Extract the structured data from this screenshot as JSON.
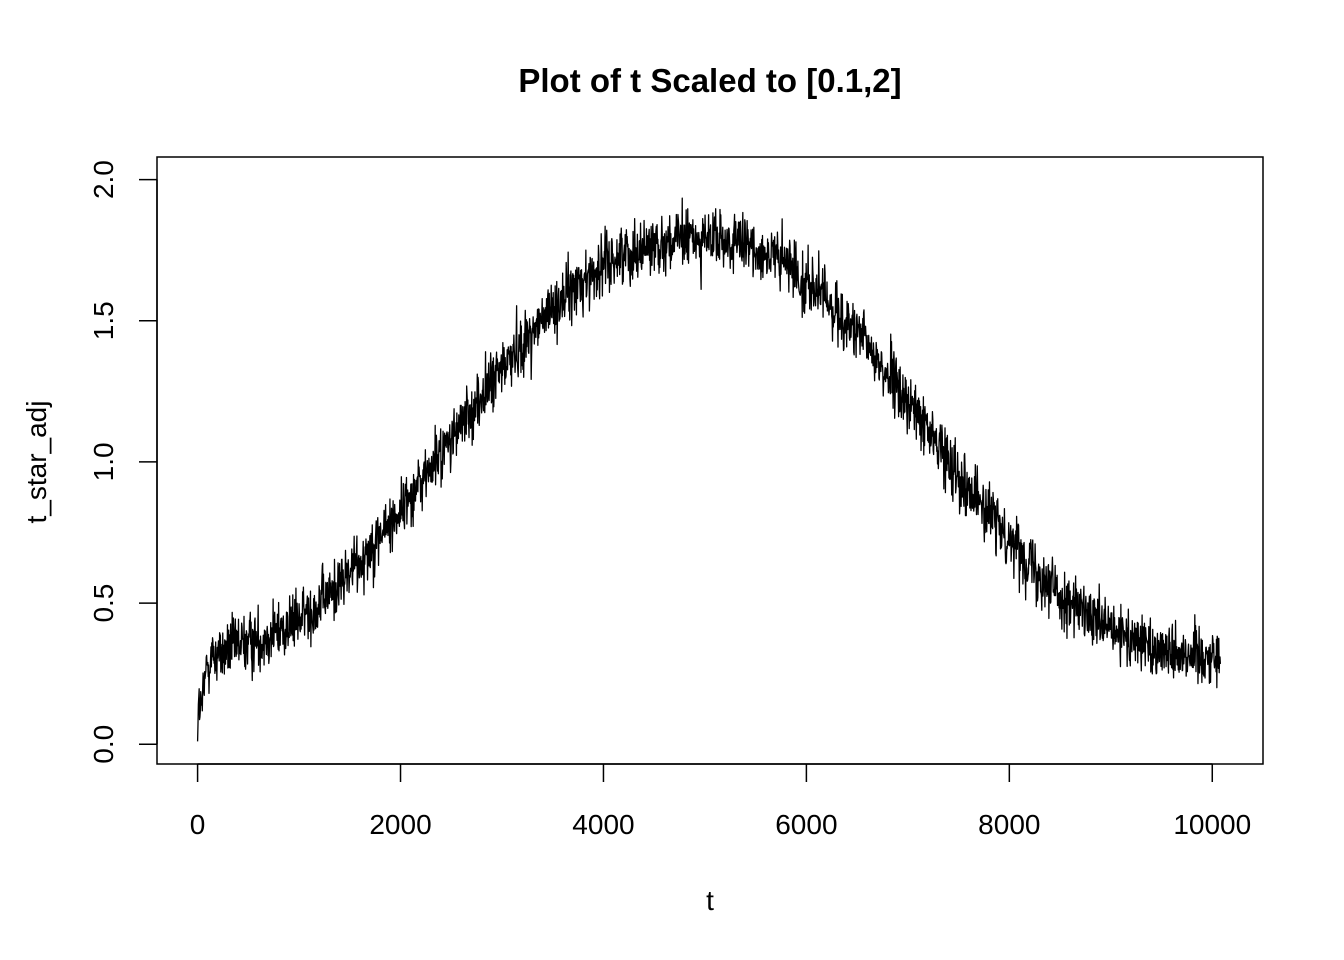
{
  "chart_data": {
    "type": "line",
    "title": "Plot of t Scaled to [0.1,2]",
    "xlabel": "t",
    "ylabel": "t_star_adj",
    "xlim": [
      -400,
      10500
    ],
    "ylim": [
      -0.07,
      2.08
    ],
    "x_ticks": [
      0,
      2000,
      4000,
      6000,
      8000,
      10000
    ],
    "x_tick_labels": [
      "0",
      "2000",
      "4000",
      "6000",
      "8000",
      "10000"
    ],
    "y_ticks": [
      0.0,
      0.5,
      1.0,
      1.5,
      2.0
    ],
    "y_tick_labels": [
      "0.0",
      "0.5",
      "1.0",
      "1.5",
      "2.0"
    ],
    "grid": false,
    "legend": "none",
    "line_color": "#000000",
    "series": [
      {
        "x": [
          0,
          100,
          200,
          300,
          400,
          500,
          600,
          700,
          800,
          900,
          1000,
          1100,
          1200,
          1300,
          1400,
          1500,
          1600,
          1700,
          1800,
          1900,
          2000,
          2100,
          2200,
          2300,
          2400,
          2500,
          2600,
          2700,
          2800,
          2900,
          3000,
          3100,
          3200,
          3300,
          3400,
          3500,
          3600,
          3700,
          3800,
          3900,
          4000,
          4100,
          4200,
          4300,
          4400,
          4500,
          4600,
          4700,
          4800,
          4900,
          5000,
          5100,
          5200,
          5300,
          5400,
          5500,
          5600,
          5700,
          5800,
          5900,
          6000,
          6100,
          6200,
          6300,
          6400,
          6500,
          6600,
          6700,
          6800,
          6900,
          7000,
          7100,
          7200,
          7300,
          7400,
          7500,
          7600,
          7700,
          7800,
          7900,
          8000,
          8100,
          8200,
          8300,
          8400,
          8500,
          8600,
          8700,
          8800,
          8900,
          9000,
          9100,
          9200,
          9300,
          9400,
          9500,
          9600,
          9700,
          9800,
          9900,
          10000,
          10080
        ],
        "y": [
          0.01,
          0.3,
          0.32,
          0.33,
          0.35,
          0.36,
          0.37,
          0.39,
          0.4,
          0.42,
          0.44,
          0.47,
          0.5,
          0.53,
          0.57,
          0.61,
          0.65,
          0.7,
          0.74,
          0.78,
          0.83,
          0.88,
          0.93,
          0.98,
          1.03,
          1.08,
          1.13,
          1.18,
          1.23,
          1.28,
          1.33,
          1.38,
          1.42,
          1.46,
          1.5,
          1.54,
          1.58,
          1.61,
          1.64,
          1.67,
          1.7,
          1.72,
          1.74,
          1.75,
          1.76,
          1.77,
          1.78,
          1.78,
          1.79,
          1.79,
          1.79,
          1.78,
          1.78,
          1.77,
          1.76,
          1.75,
          1.74,
          1.72,
          1.7,
          1.67,
          1.64,
          1.61,
          1.57,
          1.53,
          1.49,
          1.45,
          1.41,
          1.36,
          1.31,
          1.26,
          1.21,
          1.16,
          1.11,
          1.06,
          1.01,
          0.96,
          0.91,
          0.86,
          0.81,
          0.77,
          0.73,
          0.69,
          0.65,
          0.61,
          0.57,
          0.53,
          0.5,
          0.47,
          0.44,
          0.42,
          0.4,
          0.38,
          0.37,
          0.36,
          0.35,
          0.34,
          0.33,
          0.33,
          0.32,
          0.32,
          0.31,
          0.31
        ]
      }
    ]
  }
}
